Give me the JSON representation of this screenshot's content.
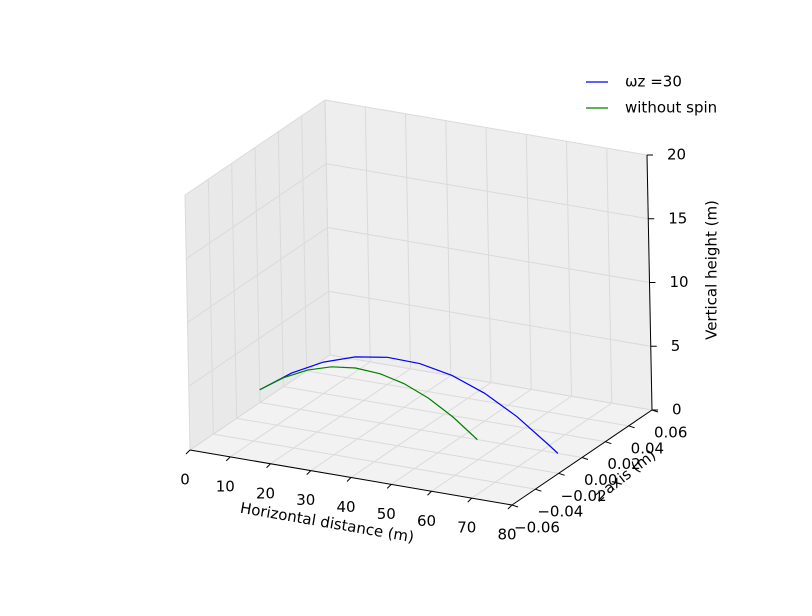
{
  "chart_data": {
    "type": "line3d",
    "xlabel": "Horizontal distance (m)",
    "ylabel": "z axis (m)",
    "zlabel": "Vertical height (m)",
    "xlim": [
      0,
      80
    ],
    "xticks": [
      0,
      10,
      20,
      30,
      40,
      50,
      60,
      70,
      80
    ],
    "ylim": [
      -0.06,
      0.06
    ],
    "yticks": [
      {
        "value": -0.06,
        "label": "−0.06"
      },
      {
        "value": -0.04,
        "label": "−0.04"
      },
      {
        "value": -0.02,
        "label": "−0.02"
      },
      {
        "value": 0,
        "label": "0.00"
      },
      {
        "value": 0.02,
        "label": "0.02"
      },
      {
        "value": 0.04,
        "label": "0.04"
      },
      {
        "value": 0.06,
        "label": "0.06"
      }
    ],
    "zlim": [
      0,
      20
    ],
    "zticks": [
      0,
      5,
      10,
      15,
      20
    ],
    "grid": true,
    "legend": "upper right",
    "series": [
      {
        "name": "ωz =30",
        "color": "#0000ff",
        "x": [
          0,
          8,
          16,
          24,
          32,
          40,
          48,
          56,
          64,
          72,
          74
        ],
        "z": [
          1,
          2.74,
          4.03,
          4.87,
          5.27,
          5.21,
          4.71,
          3.75,
          2.34,
          0.49,
          0
        ]
      },
      {
        "name": "without spin",
        "color": "#008000",
        "x": [
          0,
          6,
          12,
          18,
          24,
          30,
          36,
          42,
          48,
          54
        ],
        "z": [
          1,
          2.27,
          3.19,
          3.77,
          4.0,
          3.88,
          3.42,
          2.61,
          1.46,
          0
        ]
      }
    ]
  }
}
